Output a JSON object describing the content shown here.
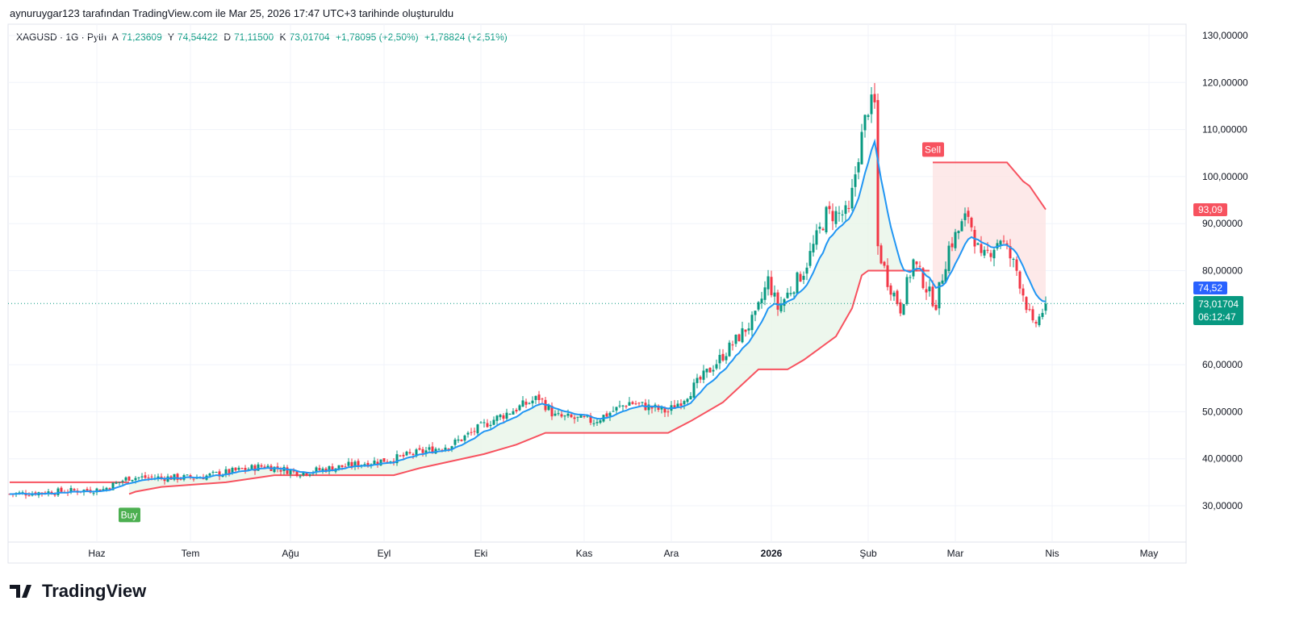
{
  "header": "aynuruygar123 tarafından TradingView.com ile Mar 25, 2026 17:47 UTC+3 tarihinde oluşturuldu",
  "legend": {
    "symbol": "XAGUSD · 1G · Pyth",
    "o_label": "A",
    "o": "71,23609",
    "h_label": "Y",
    "h": "74,54422",
    "l_label": "D",
    "l": "71,11500",
    "c_label": "K",
    "c": "73,01704",
    "chg": "+1,78095 (+2,50%)",
    "chg2": "+1,78824 (+2,51%)"
  },
  "tags": {
    "stop": "93,09",
    "ema": "74,52",
    "last": "73,01704",
    "countdown": "06:12:47",
    "buy": "Buy",
    "sell": "Sell"
  },
  "logo": "TradingView",
  "colors": {
    "up": "#089981",
    "down": "#f23645",
    "ema": "#2962ff",
    "st_up": "#f7525f",
    "fill_up": "#e8f5e9",
    "fill_down": "#fde4e4"
  },
  "chart_data": {
    "type": "candlestick",
    "title": "XAGUSD 1G",
    "ylim": [
      20,
      135
    ],
    "y_ticks": [
      {
        "v": 130,
        "label": "130,00000"
      },
      {
        "v": 120,
        "label": "120,00000"
      },
      {
        "v": 110,
        "label": "110,00000"
      },
      {
        "v": 100,
        "label": "100,00000"
      },
      {
        "v": 90,
        "label": "90,00000"
      },
      {
        "v": 80,
        "label": "80,00000"
      },
      {
        "v": 60,
        "label": "60,00000"
      },
      {
        "v": 50,
        "label": "50,00000"
      },
      {
        "v": 40,
        "label": "40,00000"
      },
      {
        "v": 30,
        "label": "30,00000"
      }
    ],
    "x_ticks": [
      {
        "d": 27,
        "label": "Haz"
      },
      {
        "d": 56,
        "label": "Tem"
      },
      {
        "d": 87,
        "label": "Ağu"
      },
      {
        "d": 116,
        "label": "Eyl"
      },
      {
        "d": 146,
        "label": "Eki"
      },
      {
        "d": 178,
        "label": "Kas"
      },
      {
        "d": 205,
        "label": "Ara"
      },
      {
        "d": 236,
        "label": "2026",
        "bold": true
      },
      {
        "d": 266,
        "label": "Şub"
      },
      {
        "d": 293,
        "label": "Mar"
      },
      {
        "d": 323,
        "label": "Nis"
      },
      {
        "d": 353,
        "label": "May"
      }
    ],
    "close_keypoints": [
      [
        0,
        32.5
      ],
      [
        29,
        33.5
      ],
      [
        37,
        36
      ],
      [
        58,
        36
      ],
      [
        79,
        38.5
      ],
      [
        90,
        37
      ],
      [
        119,
        40
      ],
      [
        137,
        43
      ],
      [
        149,
        48
      ],
      [
        164,
        53
      ],
      [
        169,
        49
      ],
      [
        181,
        48
      ],
      [
        192,
        52
      ],
      [
        204,
        50
      ],
      [
        209,
        53
      ],
      [
        221,
        62
      ],
      [
        231,
        70
      ],
      [
        235,
        78
      ],
      [
        238,
        72
      ],
      [
        246,
        80
      ],
      [
        253,
        92
      ],
      [
        260,
        92
      ],
      [
        263,
        105
      ],
      [
        266,
        115
      ],
      [
        268,
        115
      ],
      [
        269,
        85
      ],
      [
        272,
        78
      ],
      [
        276,
        72
      ],
      [
        280,
        82
      ],
      [
        285,
        75
      ],
      [
        287,
        73
      ],
      [
        291,
        85
      ],
      [
        297,
        92
      ],
      [
        301,
        82
      ],
      [
        307,
        87
      ],
      [
        312,
        80
      ],
      [
        317,
        68
      ],
      [
        319,
        70
      ],
      [
        321,
        73
      ]
    ],
    "supertrend_down_1": [
      [
        0,
        35
      ],
      [
        37,
        35
      ]
    ],
    "supertrend_up": [
      [
        37,
        32.5
      ],
      [
        39,
        33
      ],
      [
        47,
        34
      ],
      [
        67,
        35
      ],
      [
        82,
        36.5
      ],
      [
        119,
        36.5
      ],
      [
        127,
        38
      ],
      [
        137,
        39.5
      ],
      [
        147,
        41
      ],
      [
        157,
        43
      ],
      [
        166,
        45.5
      ],
      [
        204,
        45.5
      ],
      [
        211,
        48
      ],
      [
        221,
        52
      ],
      [
        232,
        59
      ],
      [
        241,
        59
      ],
      [
        246,
        61
      ],
      [
        256,
        66
      ],
      [
        261,
        72
      ],
      [
        264,
        79
      ],
      [
        266,
        80
      ],
      [
        285,
        80
      ]
    ],
    "supertrend_down_2": [
      [
        286,
        103
      ],
      [
        309,
        103
      ],
      [
        314,
        99
      ],
      [
        316,
        98
      ],
      [
        321,
        93
      ]
    ],
    "signals": [
      {
        "type": "Buy",
        "d": 37,
        "price": 32.5
      },
      {
        "type": "Sell",
        "d": 286,
        "price": 103
      }
    ],
    "ema_period": 10
  }
}
